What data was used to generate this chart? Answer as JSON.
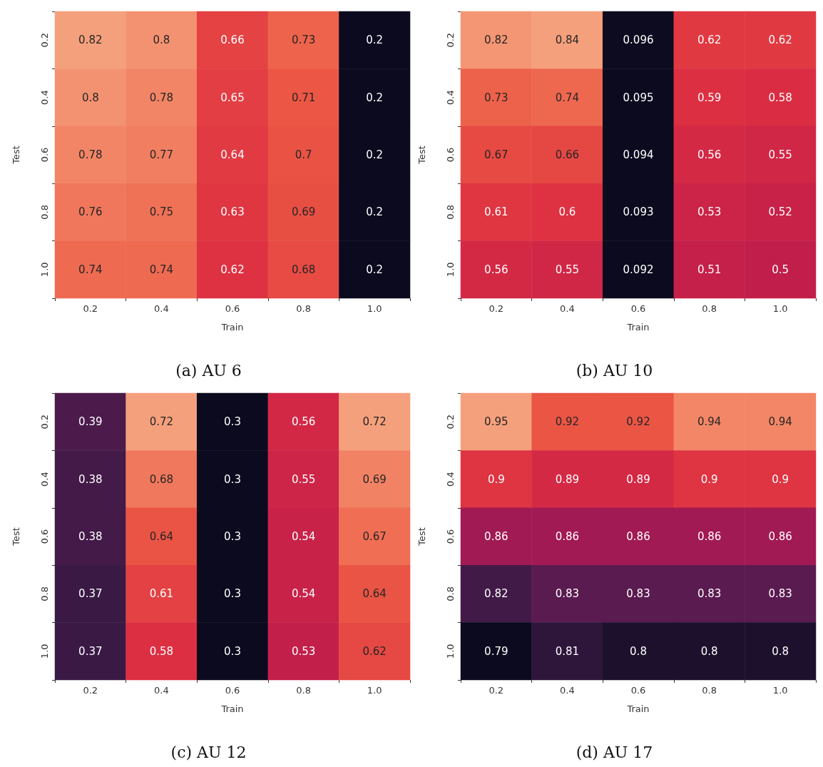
{
  "chart_data": [
    {
      "type": "heatmap",
      "data_labels": true,
      "title": "(a) AU 6",
      "xlabel": "Train",
      "ylabel": "Test",
      "categories": [
        "0.2",
        "0.4",
        "0.6",
        "0.8",
        "1.0"
      ],
      "y_categories": [
        "0.2",
        "0.4",
        "0.6",
        "0.8",
        "1.0"
      ],
      "cells": [
        [
          0.82,
          0.8,
          0.66,
          0.73,
          0.2
        ],
        [
          0.8,
          0.78,
          0.65,
          0.71,
          0.2
        ],
        [
          0.78,
          0.77,
          0.64,
          0.7,
          0.2
        ],
        [
          0.76,
          0.75,
          0.63,
          0.69,
          0.2
        ],
        [
          0.74,
          0.74,
          0.62,
          0.68,
          0.2
        ]
      ]
    },
    {
      "type": "heatmap",
      "data_labels": true,
      "title": "(b) AU 10",
      "xlabel": "Train",
      "ylabel": "Test",
      "categories": [
        "0.2",
        "0.4",
        "0.6",
        "0.8",
        "1.0"
      ],
      "y_categories": [
        "0.2",
        "0.4",
        "0.6",
        "0.8",
        "1.0"
      ],
      "cells": [
        [
          0.82,
          0.84,
          0.096,
          0.62,
          0.62
        ],
        [
          0.73,
          0.74,
          0.095,
          0.59,
          0.58
        ],
        [
          0.67,
          0.66,
          0.094,
          0.56,
          0.55
        ],
        [
          0.61,
          0.6,
          0.093,
          0.53,
          0.52
        ],
        [
          0.56,
          0.55,
          0.092,
          0.51,
          0.5
        ]
      ]
    },
    {
      "type": "heatmap",
      "data_labels": true,
      "title": "(c) AU 12",
      "xlabel": "Train",
      "ylabel": "Test",
      "categories": [
        "0.2",
        "0.4",
        "0.6",
        "0.8",
        "1.0"
      ],
      "y_categories": [
        "0.2",
        "0.4",
        "0.6",
        "0.8",
        "1.0"
      ],
      "cells": [
        [
          0.39,
          0.72,
          0.3,
          0.56,
          0.72
        ],
        [
          0.38,
          0.68,
          0.3,
          0.55,
          0.69
        ],
        [
          0.38,
          0.64,
          0.3,
          0.54,
          0.67
        ],
        [
          0.37,
          0.61,
          0.3,
          0.54,
          0.64
        ],
        [
          0.37,
          0.58,
          0.3,
          0.53,
          0.62
        ]
      ]
    },
    {
      "type": "heatmap",
      "data_labels": true,
      "title": "(d) AU 17",
      "xlabel": "Train",
      "ylabel": "Test",
      "categories": [
        "0.2",
        "0.4",
        "0.6",
        "0.8",
        "1.0"
      ],
      "y_categories": [
        "0.2",
        "0.4",
        "0.6",
        "0.8",
        "1.0"
      ],
      "cells": [
        [
          0.95,
          0.92,
          0.92,
          0.94,
          0.94
        ],
        [
          0.9,
          0.89,
          0.89,
          0.9,
          0.9
        ],
        [
          0.86,
          0.86,
          0.86,
          0.86,
          0.86
        ],
        [
          0.82,
          0.83,
          0.83,
          0.83,
          0.83
        ],
        [
          0.79,
          0.81,
          0.8,
          0.8,
          0.8
        ]
      ]
    }
  ]
}
